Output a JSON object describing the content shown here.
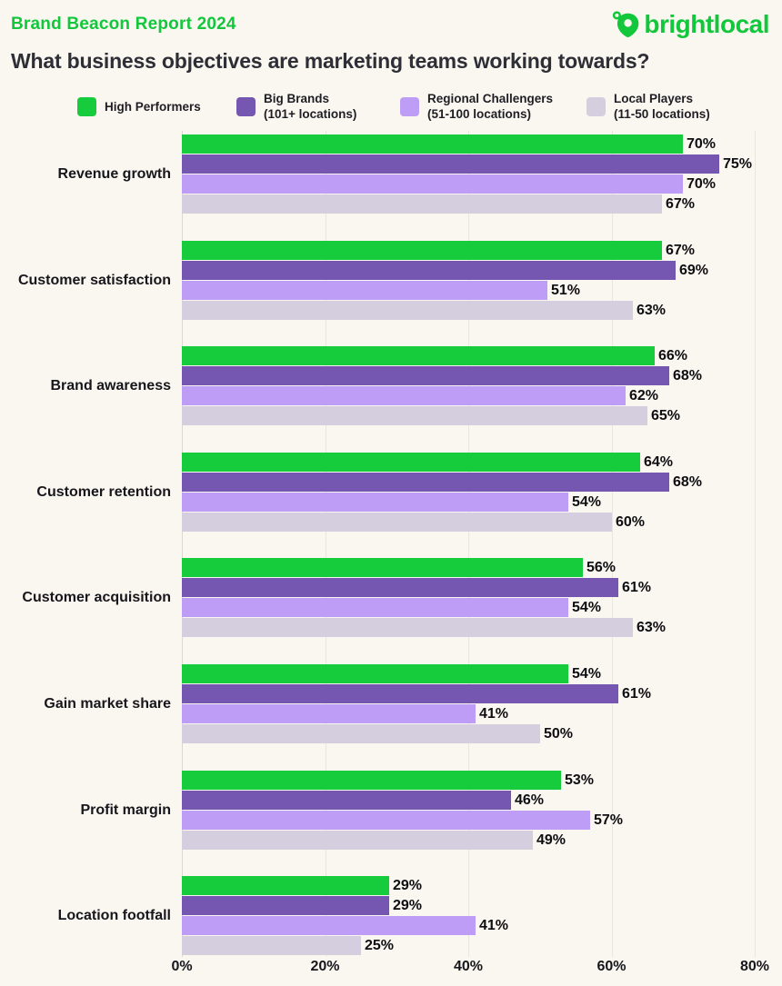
{
  "header": {
    "report_label": "Brand Beacon Report 2024",
    "logo_text": "brightlocal"
  },
  "title": "What business objectives are marketing teams working towards?",
  "colors": {
    "background": "#FAF7F0",
    "brand_green": "#12C73C",
    "grid": "#EAE6DE",
    "axis_line": "#DCD8D0",
    "title_text": "#2E2E36",
    "label_text": "#16161C"
  },
  "legend": [
    {
      "key": "high-performers",
      "label": "High Performers",
      "sublabel": "",
      "color": "#16CB3C"
    },
    {
      "key": "big-brands",
      "label": "Big Brands",
      "sublabel": "(101+ locations)",
      "color": "#7556B0"
    },
    {
      "key": "regional-challengers",
      "label": "Regional Challengers",
      "sublabel": "(51-100 locations)",
      "color": "#BE9DF6"
    },
    {
      "key": "local-players",
      "label": "Local Players",
      "sublabel": "(11-50 locations)",
      "color": "#D4CEDF"
    }
  ],
  "chart_data": {
    "type": "bar",
    "orientation": "horizontal",
    "title": "What business objectives are marketing teams working towards?",
    "categories": [
      "Revenue growth",
      "Customer satisfaction",
      "Brand awareness",
      "Customer retention",
      "Customer acquisition",
      "Gain market share",
      "Profit margin",
      "Location footfall"
    ],
    "series": [
      {
        "key": "high-performers",
        "name": "High Performers",
        "color": "#16CB3C",
        "values": [
          70,
          67,
          66,
          64,
          56,
          54,
          53,
          29
        ]
      },
      {
        "key": "big-brands",
        "name": "Big Brands (101+ locations)",
        "color": "#7556B0",
        "values": [
          75,
          69,
          68,
          68,
          61,
          61,
          46,
          29
        ]
      },
      {
        "key": "regional-challengers",
        "name": "Regional Challengers (51-100 locations)",
        "color": "#BE9DF6",
        "values": [
          70,
          51,
          62,
          54,
          54,
          41,
          57,
          41
        ]
      },
      {
        "key": "local-players",
        "name": "Local Players (11-50 locations)",
        "color": "#D4CEDF",
        "values": [
          67,
          63,
          65,
          60,
          63,
          50,
          49,
          25
        ]
      }
    ],
    "value_suffix": "%",
    "xlim": [
      0,
      80
    ],
    "x_tick_values": [
      0,
      20,
      40,
      60,
      80
    ],
    "x_tick_labels": [
      "0%",
      "20%",
      "40%",
      "60%",
      "80%"
    ],
    "grid": true,
    "legend_position": "top"
  }
}
